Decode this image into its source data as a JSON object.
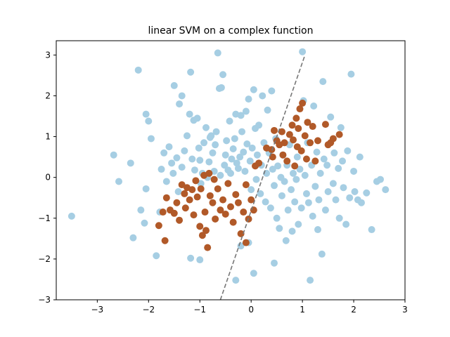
{
  "chart_data": {
    "type": "scatter",
    "title": "linear SVM on a complex function",
    "xlabel": "",
    "ylabel": "",
    "xlim": [
      -3.8,
      3.0
    ],
    "ylim": [
      -3.0,
      3.35
    ],
    "xticks": [
      -3,
      -2,
      -1,
      0,
      1,
      2,
      3
    ],
    "yticks": [
      -3,
      -2,
      -1,
      0,
      1,
      2,
      3
    ],
    "xtick_labels": [
      "−3",
      "−2",
      "−1",
      "0",
      "1",
      "2",
      "3"
    ],
    "ytick_labels": [
      "−3",
      "−2",
      "−1",
      "0",
      "1",
      "2",
      "3"
    ],
    "grid": false,
    "colors": {
      "class_0": "#a6cee3",
      "class_1": "#b15928",
      "decision_boundary": "#777777",
      "axes": "#000000",
      "background": "#ffffff"
    },
    "decision_boundary": {
      "style": "dashed",
      "points": [
        [
          -0.6,
          -3.0
        ],
        [
          1.05,
          3.0
        ]
      ]
    },
    "series": [
      {
        "class": 0,
        "points": [
          [
            -3.5,
            -0.95
          ],
          [
            -2.68,
            0.55
          ],
          [
            -2.58,
            -0.1
          ],
          [
            -2.35,
            0.35
          ],
          [
            -2.3,
            -1.48
          ],
          [
            -2.2,
            2.63
          ],
          [
            -2.15,
            -0.8
          ],
          [
            -2.08,
            -1.12
          ],
          [
            -2.05,
            1.55
          ],
          [
            -2.05,
            -0.28
          ],
          [
            -2.0,
            1.38
          ],
          [
            -1.95,
            0.95
          ],
          [
            -1.85,
            -1.92
          ],
          [
            -1.75,
            0.2
          ],
          [
            -1.7,
            0.6
          ],
          [
            -1.65,
            -0.1
          ],
          [
            -1.6,
            0.75
          ],
          [
            -1.55,
            0.35
          ],
          [
            -1.52,
            0.1
          ],
          [
            -1.5,
            2.25
          ],
          [
            -1.45,
            0.48
          ],
          [
            -1.42,
            -0.35
          ],
          [
            -1.4,
            1.8
          ],
          [
            -1.35,
            0.25
          ],
          [
            -1.35,
            2.0
          ],
          [
            -1.3,
            0.65
          ],
          [
            -1.25,
            1.02
          ],
          [
            -1.2,
            1.55
          ],
          [
            -1.18,
            2.58
          ],
          [
            -1.15,
            0.45
          ],
          [
            -1.12,
            1.4
          ],
          [
            -1.1,
            0.18
          ],
          [
            -1.05,
            1.45
          ],
          [
            -1.02,
            0.72
          ],
          [
            -1.0,
            0.42
          ],
          [
            -0.98,
            -0.15
          ],
          [
            -0.95,
            0.1
          ],
          [
            -0.92,
            0.85
          ],
          [
            -0.88,
            1.22
          ],
          [
            -0.85,
            0.0
          ],
          [
            -0.82,
            0.38
          ],
          [
            -0.8,
            0.98
          ],
          [
            -0.78,
            1.02
          ],
          [
            -0.75,
            0.6
          ],
          [
            -0.72,
            0.15
          ],
          [
            -0.7,
            0.8
          ],
          [
            -0.68,
            1.12
          ],
          [
            -0.65,
            3.05
          ],
          [
            -0.62,
            2.18
          ],
          [
            -0.6,
            0.05
          ],
          [
            -0.58,
            2.2
          ],
          [
            -0.55,
            2.52
          ],
          [
            -0.52,
            0.3
          ],
          [
            -0.5,
            0.55
          ],
          [
            -0.48,
            0.9
          ],
          [
            -0.45,
            0.18
          ],
          [
            -0.42,
            1.38
          ],
          [
            -0.4,
            0.1
          ],
          [
            -0.38,
            0.45
          ],
          [
            -0.35,
            0.7
          ],
          [
            -0.32,
            0.95
          ],
          [
            -0.3,
            1.55
          ],
          [
            -0.28,
            0.35
          ],
          [
            -0.25,
            0.22
          ],
          [
            -0.22,
            0.5
          ],
          [
            -0.2,
            1.52
          ],
          [
            -0.18,
            1.12
          ],
          [
            -0.15,
            0.62
          ],
          [
            -0.12,
            0.15
          ],
          [
            -0.1,
            1.62
          ],
          [
            -0.08,
            0.82
          ],
          [
            -0.05,
            1.92
          ],
          [
            -0.02,
            0.4
          ],
          [
            0.0,
            -0.3
          ],
          [
            0.02,
            0.72
          ],
          [
            0.05,
            2.15
          ],
          [
            0.08,
            1.2
          ],
          [
            0.1,
            -0.05
          ],
          [
            0.12,
            0.55
          ],
          [
            0.15,
            1.28
          ],
          [
            0.18,
            -0.4
          ],
          [
            0.2,
            0.3
          ],
          [
            0.22,
            2.0
          ],
          [
            0.25,
            0.85
          ],
          [
            0.28,
            -0.6
          ],
          [
            0.3,
            0.1
          ],
          [
            0.32,
            1.65
          ],
          [
            0.35,
            0.6
          ],
          [
            0.38,
            -0.75
          ],
          [
            0.4,
            2.12
          ],
          [
            0.42,
            0.2
          ],
          [
            0.45,
            -0.2
          ],
          [
            0.48,
            0.95
          ],
          [
            0.5,
            -1.0
          ],
          [
            0.52,
            0.28
          ],
          [
            0.55,
            -1.25
          ],
          [
            0.58,
            0.0
          ],
          [
            0.6,
            -0.45
          ],
          [
            0.62,
            0.55
          ],
          [
            0.65,
            -0.1
          ],
          [
            0.68,
            -1.55
          ],
          [
            0.7,
            0.3
          ],
          [
            0.72,
            -0.8
          ],
          [
            0.75,
            0.8
          ],
          [
            0.78,
            -0.3
          ],
          [
            0.8,
            -1.32
          ],
          [
            0.82,
            0.1
          ],
          [
            0.85,
            -0.6
          ],
          [
            0.88,
            -0.05
          ],
          [
            0.9,
            0.5
          ],
          [
            0.92,
            -1.15
          ],
          [
            0.95,
            0.2
          ],
          [
            0.98,
            -0.75
          ],
          [
            1.0,
            3.08
          ],
          [
            1.02,
            1.88
          ],
          [
            1.05,
            0.05
          ],
          [
            1.08,
            -0.4
          ],
          [
            1.1,
            0.85
          ],
          [
            1.12,
            -0.62
          ],
          [
            1.15,
            -2.52
          ],
          [
            1.18,
            0.3
          ],
          [
            1.2,
            -0.95
          ],
          [
            1.22,
            1.75
          ],
          [
            1.25,
            -0.22
          ],
          [
            1.28,
            0.62
          ],
          [
            1.3,
            -1.28
          ],
          [
            1.32,
            -0.55
          ],
          [
            1.35,
            0.1
          ],
          [
            1.38,
            -1.88
          ],
          [
            1.4,
            2.35
          ],
          [
            1.42,
            0.45
          ],
          [
            1.45,
            -0.8
          ],
          [
            1.48,
            0.3
          ],
          [
            1.5,
            -0.35
          ],
          [
            1.55,
            1.48
          ],
          [
            1.6,
            -0.15
          ],
          [
            1.62,
            0.6
          ],
          [
            1.65,
            -0.55
          ],
          [
            1.7,
            0.22
          ],
          [
            1.72,
            -1.0
          ],
          [
            1.75,
            1.22
          ],
          [
            1.78,
            0.4
          ],
          [
            1.8,
            -0.25
          ],
          [
            1.85,
            -1.15
          ],
          [
            1.88,
            0.65
          ],
          [
            1.92,
            -0.5
          ],
          [
            1.95,
            2.53
          ],
          [
            2.0,
            0.15
          ],
          [
            2.02,
            -0.35
          ],
          [
            2.08,
            -0.55
          ],
          [
            2.12,
            0.5
          ],
          [
            2.15,
            -0.62
          ],
          [
            2.25,
            -0.38
          ],
          [
            2.35,
            -1.28
          ],
          [
            2.45,
            -0.1
          ],
          [
            2.52,
            -0.05
          ],
          [
            2.62,
            -0.3
          ],
          [
            0.45,
            -2.1
          ],
          [
            0.05,
            -2.35
          ],
          [
            -0.3,
            -2.52
          ],
          [
            -0.2,
            -1.68
          ],
          [
            -0.05,
            -1.6
          ],
          [
            -1.0,
            -2.02
          ],
          [
            -1.18,
            -1.98
          ],
          [
            -1.78,
            -0.85
          ]
        ]
      },
      {
        "class": 1,
        "points": [
          [
            -1.8,
            -1.18
          ],
          [
            -1.72,
            -0.85
          ],
          [
            -1.68,
            -1.55
          ],
          [
            -1.65,
            -0.5
          ],
          [
            -1.58,
            -0.8
          ],
          [
            -1.5,
            -0.88
          ],
          [
            -1.45,
            -0.62
          ],
          [
            -1.4,
            -1.05
          ],
          [
            -1.35,
            -0.18
          ],
          [
            -1.3,
            -0.4
          ],
          [
            -1.28,
            -0.75
          ],
          [
            -1.25,
            -0.25
          ],
          [
            -1.2,
            -0.55
          ],
          [
            -1.15,
            -0.3
          ],
          [
            -1.12,
            -0.92
          ],
          [
            -1.08,
            -0.08
          ],
          [
            -1.05,
            -0.48
          ],
          [
            -1.0,
            -1.2
          ],
          [
            -0.98,
            -0.28
          ],
          [
            -0.95,
            -1.42
          ],
          [
            -0.92,
            0.05
          ],
          [
            -0.9,
            -0.85
          ],
          [
            -0.88,
            -1.3
          ],
          [
            -0.85,
            -1.72
          ],
          [
            -0.82,
            0.1
          ],
          [
            -0.8,
            -0.45
          ],
          [
            -0.75,
            -0.62
          ],
          [
            -0.72,
            -0.05
          ],
          [
            -0.7,
            -1.02
          ],
          [
            -0.65,
            -0.28
          ],
          [
            -0.6,
            -0.8
          ],
          [
            -0.55,
            -0.55
          ],
          [
            -0.5,
            -0.9
          ],
          [
            -0.45,
            -0.15
          ],
          [
            -0.4,
            -0.72
          ],
          [
            -0.35,
            -1.1
          ],
          [
            -0.3,
            -0.42
          ],
          [
            -0.25,
            -0.62
          ],
          [
            -0.2,
            -1.38
          ],
          [
            -0.15,
            -0.85
          ],
          [
            -0.1,
            -0.18
          ],
          [
            -0.05,
            -1.02
          ],
          [
            0.0,
            -0.55
          ],
          [
            0.05,
            -0.8
          ],
          [
            0.08,
            0.28
          ],
          [
            0.15,
            0.35
          ],
          [
            0.3,
            0.72
          ],
          [
            0.4,
            0.68
          ],
          [
            0.45,
            1.15
          ],
          [
            0.5,
            0.9
          ],
          [
            0.55,
            0.8
          ],
          [
            0.6,
            1.12
          ],
          [
            0.62,
            0.55
          ],
          [
            0.65,
            0.85
          ],
          [
            0.7,
            0.4
          ],
          [
            0.75,
            1.05
          ],
          [
            0.8,
            1.28
          ],
          [
            0.82,
            0.92
          ],
          [
            0.85,
            0.28
          ],
          [
            0.88,
            1.45
          ],
          [
            0.9,
            0.75
          ],
          [
            0.92,
            1.2
          ],
          [
            0.95,
            1.68
          ],
          [
            0.98,
            0.65
          ],
          [
            1.0,
            1.82
          ],
          [
            1.05,
            1.02
          ],
          [
            1.08,
            0.45
          ],
          [
            1.1,
            1.35
          ],
          [
            1.15,
            0.85
          ],
          [
            1.2,
            1.25
          ],
          [
            1.25,
            0.4
          ],
          [
            1.3,
            0.9
          ],
          [
            1.45,
            1.3
          ],
          [
            1.5,
            0.8
          ],
          [
            1.55,
            0.85
          ],
          [
            1.6,
            0.95
          ],
          [
            1.72,
            1.05
          ],
          [
            0.42,
            0.5
          ],
          [
            -0.1,
            -1.6
          ]
        ]
      }
    ]
  }
}
